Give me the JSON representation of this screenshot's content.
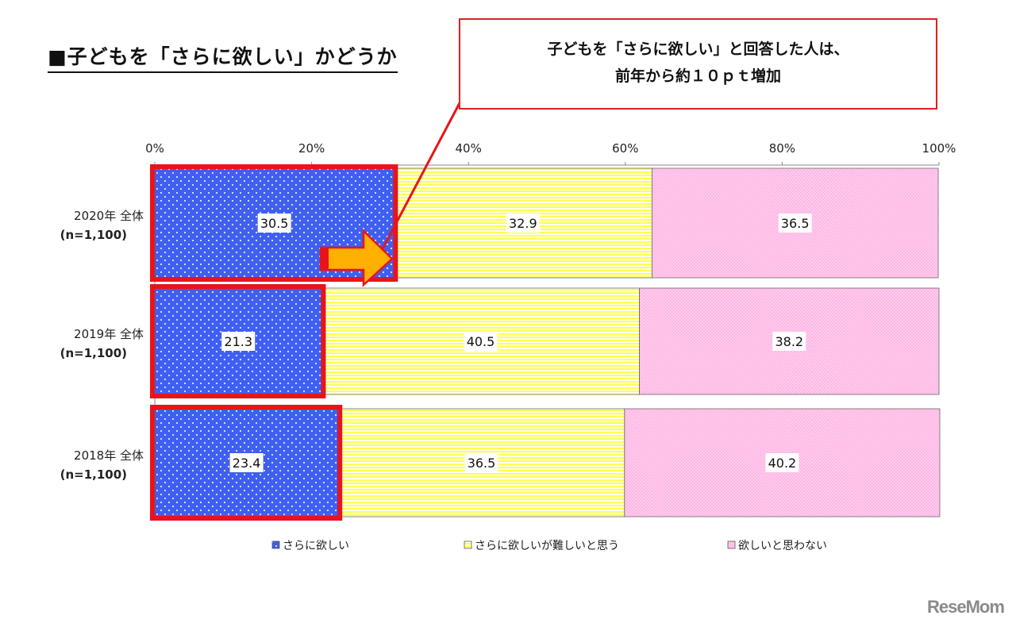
{
  "title": "■子どもを「さらに欲しい」かどうか",
  "callout": {
    "line1": "子どもを「さらに欲しい」と回答した人は、",
    "line2": "前年から約１０ｐｔ増加"
  },
  "watermark": "ReseMom",
  "colors": {
    "series1": "#3f5ff0",
    "series2": "#ffff66",
    "series3": "#ffb8e6",
    "highlight": "#e8141c",
    "arrow": "#ffb000"
  },
  "chart_data": {
    "type": "bar",
    "orientation": "horizontal",
    "stacked": "100%",
    "categories": [
      {
        "line1": "2020年 全体",
        "line2": "(n=1,100)"
      },
      {
        "line1": "2019年 全体",
        "line2": "(n=1,100)"
      },
      {
        "line1": "2018年 全体",
        "line2": "(n=1,100)"
      }
    ],
    "series": [
      {
        "name": "さらに欲しい",
        "values": [
          30.5,
          21.3,
          23.4
        ]
      },
      {
        "name": "さらに欲しいが難しいと思う",
        "values": [
          32.9,
          40.5,
          36.5
        ]
      },
      {
        "name": "欲しいと思わない",
        "values": [
          36.5,
          38.2,
          40.2
        ]
      }
    ],
    "xlim": [
      0,
      100
    ],
    "xticks": [
      "0%",
      "20%",
      "40%",
      "60%",
      "80%",
      "100%"
    ],
    "legend_position": "bottom",
    "grid": false
  }
}
